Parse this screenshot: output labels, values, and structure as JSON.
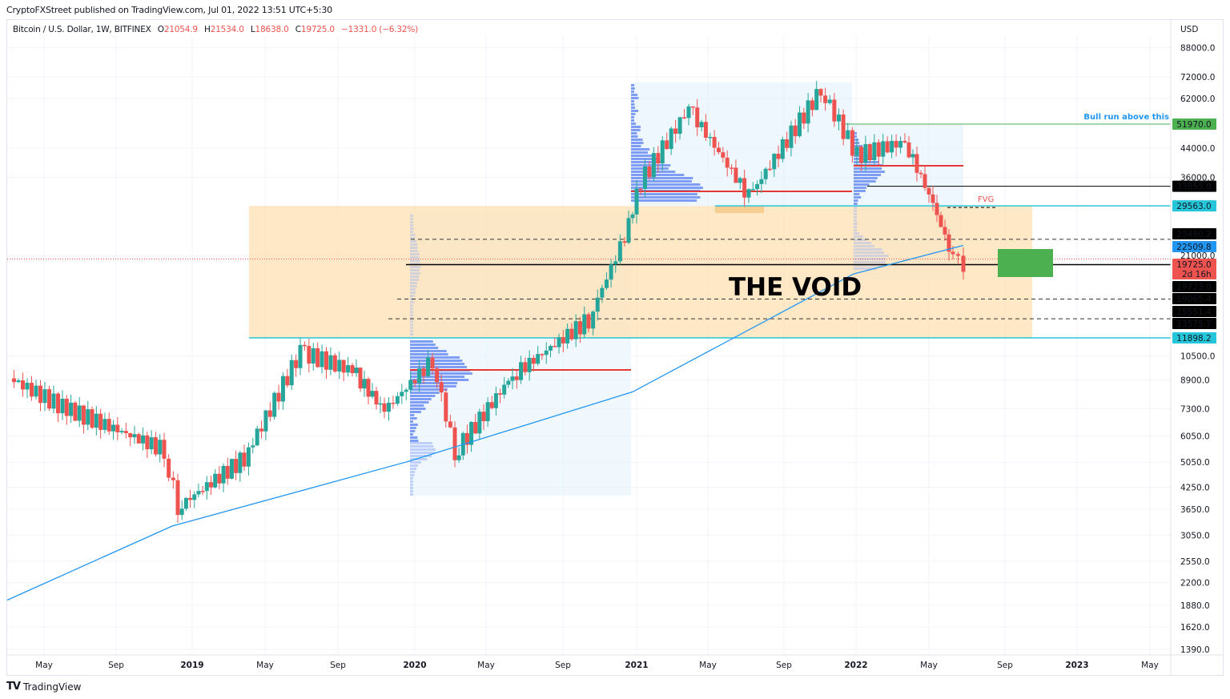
{
  "publisher_line": "CryptoFXStreet published on TradingView.com, Jul 01, 2022 13:51 UTC+5:30",
  "legend": {
    "symbol": "Bitcoin / U.S. Dollar, 1W, BITFINEX",
    "open_label": "O",
    "open": "21054.9",
    "high_label": "H",
    "high": "21534.0",
    "low_label": "L",
    "low": "18638.0",
    "close_label": "C",
    "close": "19725.0",
    "change": "−1331.0 (−6.32%)"
  },
  "footer": {
    "logo": "TV",
    "brand": "TradingView"
  },
  "colors": {
    "up": "#26a69a",
    "down": "#ef5350",
    "ma": "#2196f3",
    "void_zone": "#ffe0b2",
    "vp_region": "#e3f2fd",
    "vp_bar": "#5b7ff0",
    "target_box": "#4caf50",
    "bull_line": "#4caf50",
    "cyan_line": "#26c6da",
    "poc_line": "#e53935",
    "annotation_blue": "#2196f3"
  },
  "chart_data": {
    "type": "candlestick",
    "title": "Bitcoin / U.S. Dollar, 1W, BITFINEX",
    "scale": "log",
    "ylabel": "USD",
    "ylim": [
      1300,
      100000
    ],
    "y_ticks": [
      88000,
      72000,
      62000,
      44000,
      36000,
      21000,
      10500,
      8900,
      7300,
      6050,
      5050,
      4250,
      3650,
      3050,
      2550,
      2200,
      1880,
      1620,
      1390
    ],
    "x_ticks": [
      {
        "label": "May",
        "x": 55,
        "bold": false
      },
      {
        "label": "Sep",
        "x": 145,
        "bold": false
      },
      {
        "label": "2019",
        "x": 240,
        "bold": true
      },
      {
        "label": "May",
        "x": 331,
        "bold": false
      },
      {
        "label": "Sep",
        "x": 422,
        "bold": false
      },
      {
        "label": "2020",
        "x": 518,
        "bold": true
      },
      {
        "label": "May",
        "x": 607,
        "bold": false
      },
      {
        "label": "Sep",
        "x": 703,
        "bold": false
      },
      {
        "label": "2021",
        "x": 795,
        "bold": true
      },
      {
        "label": "May",
        "x": 884,
        "bold": false
      },
      {
        "label": "Sep",
        "x": 979,
        "bold": false
      },
      {
        "label": "2022",
        "x": 1069,
        "bold": true
      },
      {
        "label": "May",
        "x": 1160,
        "bold": false
      },
      {
        "label": "Sep",
        "x": 1255,
        "bold": false
      },
      {
        "label": "2023",
        "x": 1345,
        "bold": true
      },
      {
        "label": "May",
        "x": 1436,
        "bold": false
      }
    ],
    "price_labels": [
      {
        "value": "51970.0",
        "price": 51970,
        "bg": "#4caf50",
        "fg": "#ffffff"
      },
      {
        "value": "33855.0",
        "price": 33855,
        "bg": "#000000",
        "fg": "#ffffff"
      },
      {
        "value": "29563.0",
        "price": 29563,
        "bg": "#26c6da",
        "fg": "#131722"
      },
      {
        "value": "23480.2",
        "price": 23480.2,
        "bg": "#000000",
        "fg": "#ffffff"
      },
      {
        "value": "22509.8",
        "price": 22509.8,
        "bg": "#2196f3",
        "fg": "#ffffff"
      },
      {
        "value": "19725.0",
        "price": 19725,
        "bg": "#ef5350",
        "fg": "#ffffff",
        "sub": "2d 16h"
      },
      {
        "value": "19723.0",
        "price": 19723,
        "bg": "#000000",
        "fg": "#ffffff"
      },
      {
        "value": "19065.4",
        "price": 19065.4,
        "bg": "#000000",
        "fg": "#ffffff"
      },
      {
        "value": "15551.4",
        "price": 15551.4,
        "bg": "#000000",
        "fg": "#ffffff"
      },
      {
        "value": "13575.7",
        "price": 13575.7,
        "bg": "#000000",
        "fg": "#ffffff"
      },
      {
        "value": "11898.2",
        "price": 11898.2,
        "bg": "#26c6da",
        "fg": "#131722"
      }
    ],
    "annotations": [
      {
        "type": "text",
        "text": "THE VOID",
        "color": "#000000"
      },
      {
        "type": "text",
        "text": "FVG",
        "color": "#ef5350"
      },
      {
        "type": "text",
        "text": "Bull run above this",
        "color": "#2196f3"
      },
      {
        "type": "hline",
        "price": 51970,
        "color": "#4caf50",
        "label": "Bull run above this"
      },
      {
        "type": "hline",
        "price": 33855,
        "color": "#000000"
      },
      {
        "type": "hline",
        "price": 29563,
        "color": "#26c6da"
      },
      {
        "type": "hline_dashed",
        "price": 23480.2,
        "color": "#000000"
      },
      {
        "type": "hline",
        "price": 19723,
        "color": "#000000"
      },
      {
        "type": "hline_dashed",
        "price": 15551.4,
        "color": "#000000"
      },
      {
        "type": "hline_dashed",
        "price": 13575.7,
        "color": "#000000"
      },
      {
        "type": "hline",
        "price": 11898.2,
        "color": "#26c6da"
      },
      {
        "type": "zone",
        "name": "THE VOID",
        "from": 11898.2,
        "to": 29563,
        "color": "#ffe0b2"
      },
      {
        "type": "box",
        "name": "target",
        "from": 17800,
        "to": 21900,
        "color": "#4caf50"
      }
    ],
    "series": [
      {
        "name": "BTCUSD weekly close (approx)",
        "x_dates": [
          "2018-Apr",
          "2018-Jul",
          "2018-Nov",
          "2018-Dec",
          "2019-Apr",
          "2019-Jun",
          "2019-Sep",
          "2019-Dec",
          "2020-Feb",
          "2020-Mar",
          "2020-Jul",
          "2020-Oct",
          "2020-Dec",
          "2021-Jan",
          "2021-Apr",
          "2021-Jul",
          "2021-Nov",
          "2022-Jan",
          "2022-Mar",
          "2022-May",
          "2022-Jun",
          "2022-Jul"
        ],
        "values": [
          9000,
          7400,
          5500,
          3700,
          5200,
          10800,
          9500,
          7200,
          10200,
          5400,
          9200,
          13500,
          24000,
          35000,
          58000,
          31500,
          66000,
          42000,
          46000,
          30000,
          20500,
          19725
        ]
      },
      {
        "name": "200-week MA (approx)",
        "x_dates": [
          "2018-Mar",
          "2019-Jan",
          "2020-Jan",
          "2021-Jan",
          "2022-Jan",
          "2022-Jul"
        ],
        "values": [
          1950,
          3250,
          5100,
          8200,
          18500,
          22509.8
        ]
      }
    ]
  }
}
